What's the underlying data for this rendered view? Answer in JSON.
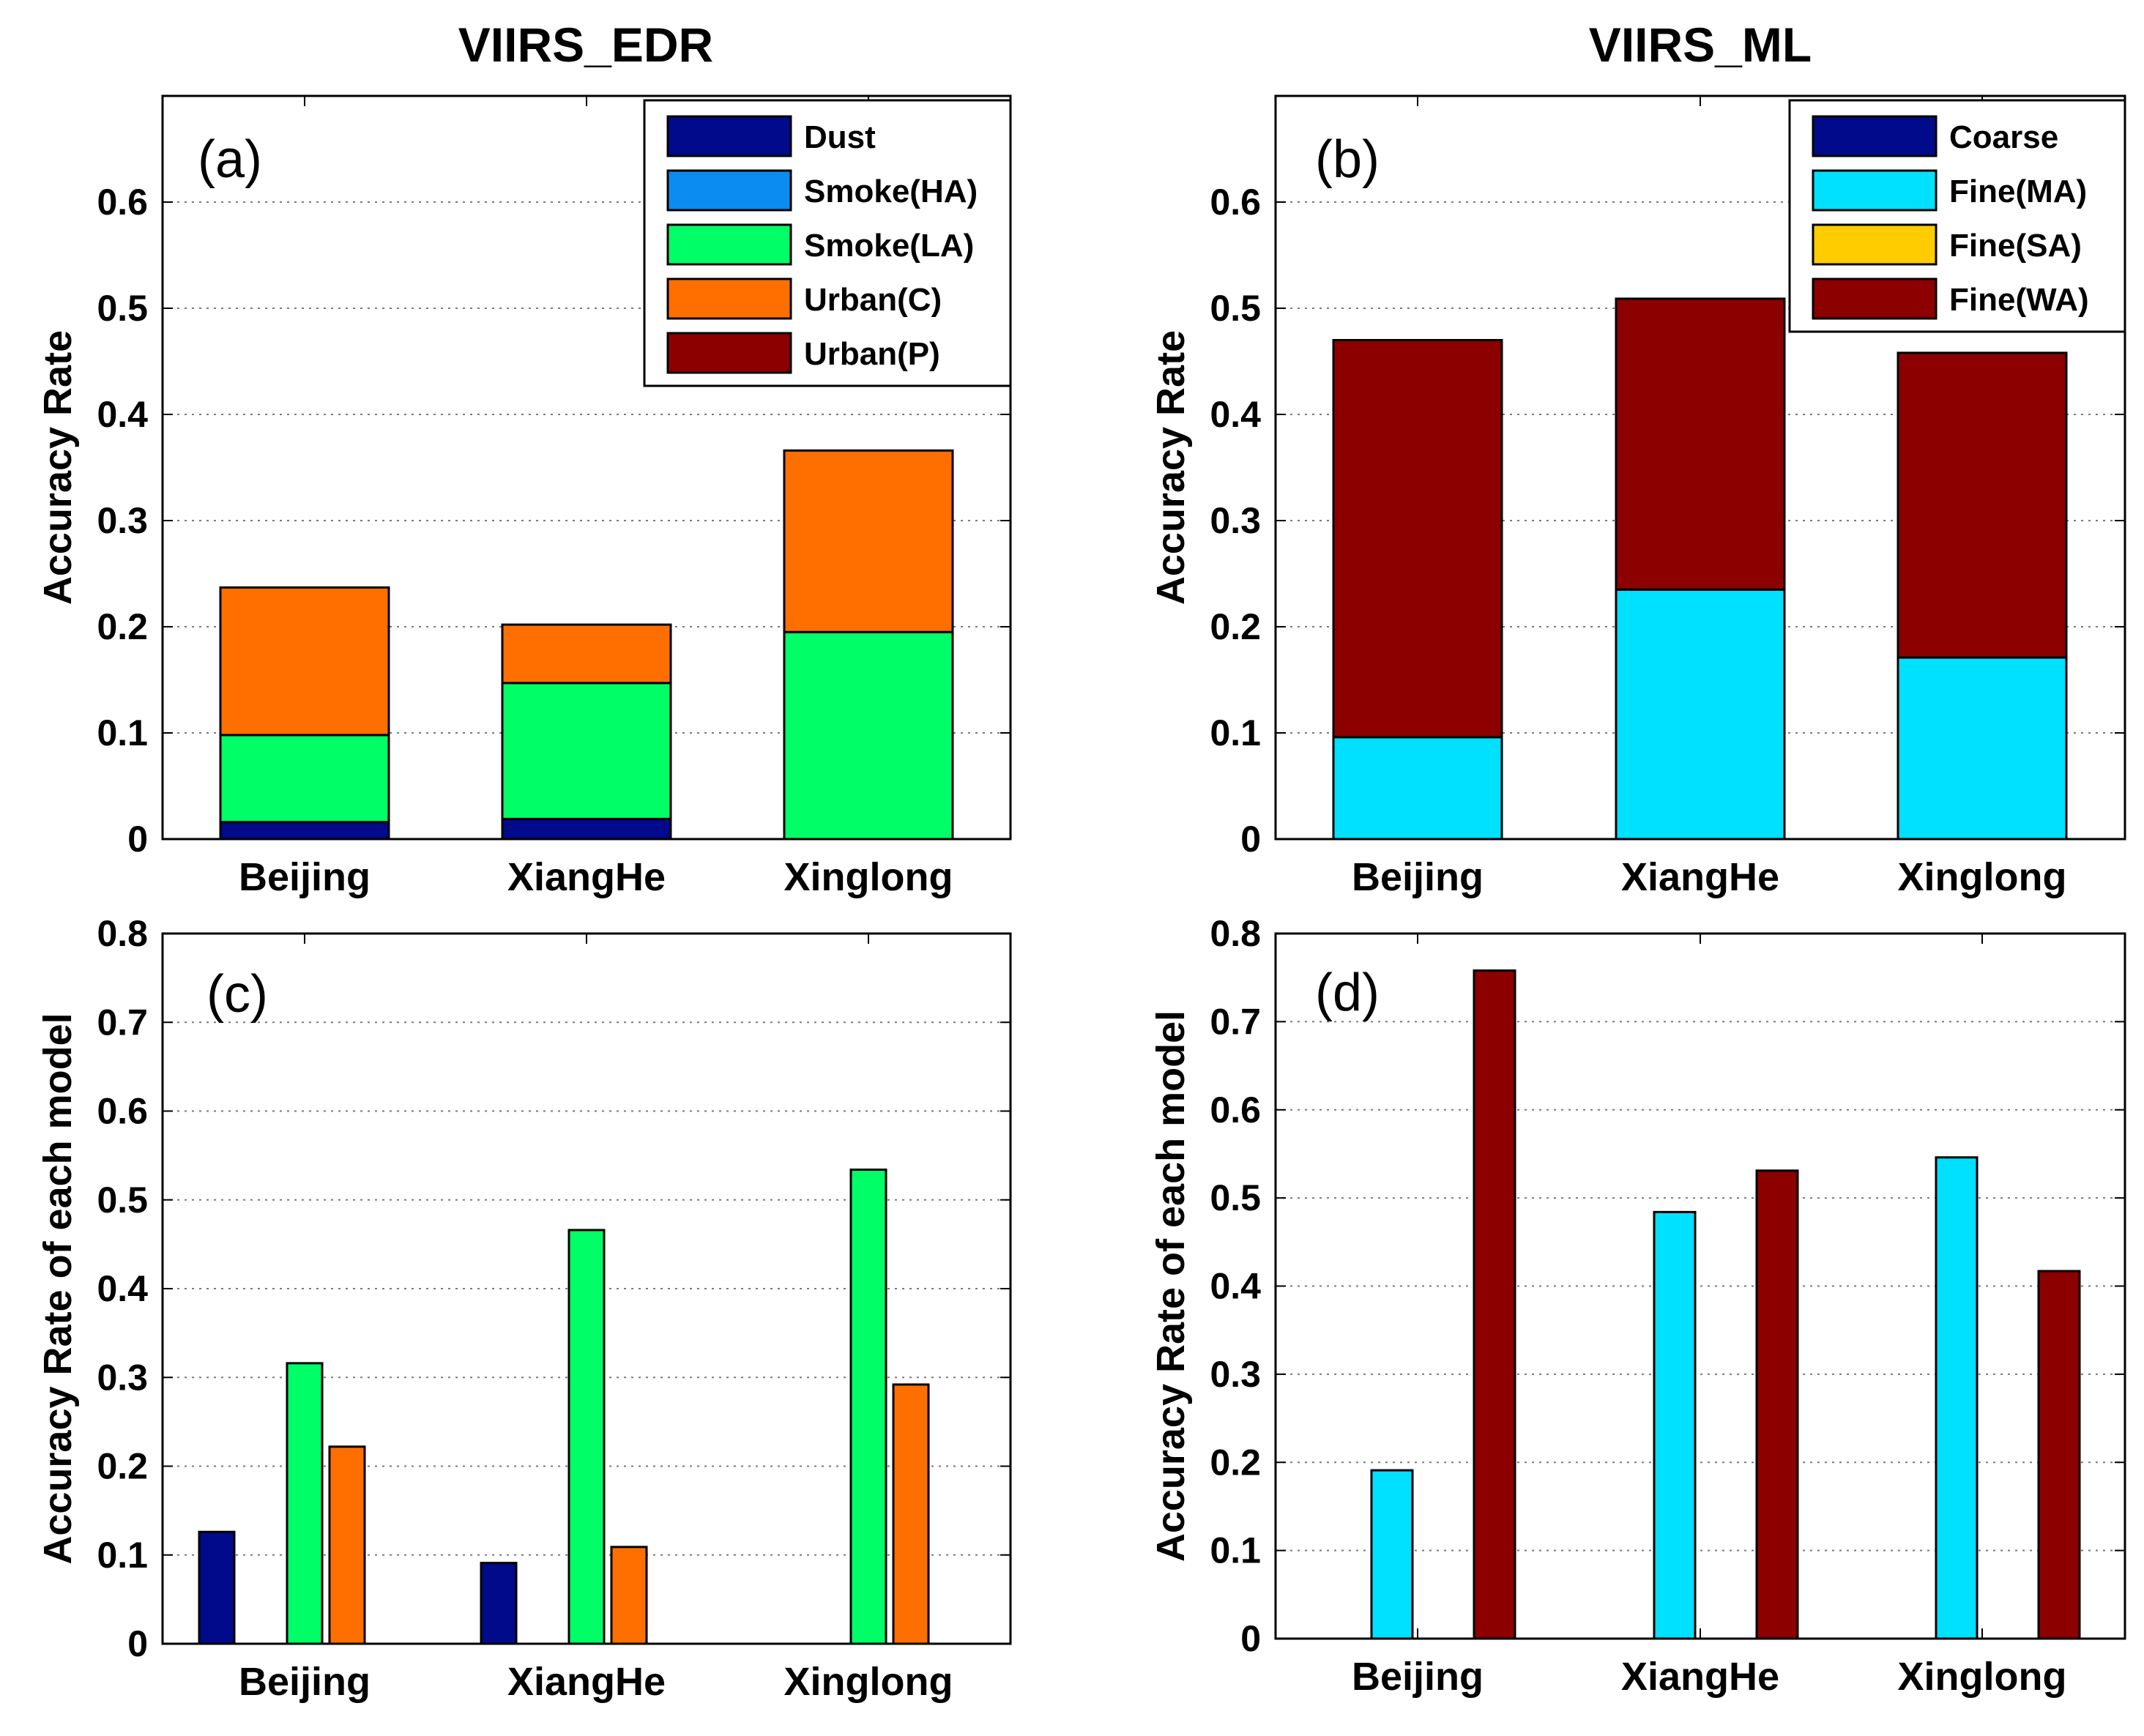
{
  "columns": {
    "left": "VIIRS_EDR",
    "right": "VIIRS_ML"
  },
  "chart_data": [
    {
      "id": "a",
      "type": "bar",
      "stacked": true,
      "panel_label": "(a)",
      "title": "VIIRS_EDR",
      "xlabel": "",
      "ylabel": "Accuracy Rate",
      "ylim": [
        0,
        0.7
      ],
      "yticks": [
        0,
        0.1,
        0.2,
        0.3,
        0.4,
        0.5,
        0.6
      ],
      "ytick_labels": [
        "0",
        "0.1",
        "0.2",
        "0.3",
        "0.4",
        "0.5",
        "0.6"
      ],
      "grid": "y-dotted",
      "legend_position": "top-right",
      "categories": [
        "Beijing",
        "XiangHe",
        "Xinglong"
      ],
      "series": [
        {
          "name": "Dust",
          "color": "#000a8a",
          "values": [
            0.016,
            0.019,
            0.0
          ]
        },
        {
          "name": "Smoke(HA)",
          "color": "#0a8cf0",
          "values": [
            0.0,
            0.0,
            0.0
          ]
        },
        {
          "name": "Smoke(LA)",
          "color": "#00ff66",
          "values": [
            0.082,
            0.128,
            0.195
          ]
        },
        {
          "name": "Urban(C)",
          "color": "#ff6f00",
          "values": [
            0.139,
            0.055,
            0.171
          ]
        },
        {
          "name": "Urban(P)",
          "color": "#8c0000",
          "values": [
            0.0,
            0.0,
            0.0
          ]
        }
      ]
    },
    {
      "id": "b",
      "type": "bar",
      "stacked": true,
      "panel_label": "(b)",
      "title": "VIIRS_ML",
      "xlabel": "",
      "ylabel": "Accuracy Rate",
      "ylim": [
        0,
        0.7
      ],
      "yticks": [
        0,
        0.1,
        0.2,
        0.3,
        0.4,
        0.5,
        0.6
      ],
      "ytick_labels": [
        "0",
        "0.1",
        "0.2",
        "0.3",
        "0.4",
        "0.5",
        "0.6"
      ],
      "grid": "y-dotted",
      "legend_position": "top-right",
      "categories": [
        "Beijing",
        "XiangHe",
        "Xinglong"
      ],
      "series": [
        {
          "name": "Coarse",
          "color": "#000a8a",
          "values": [
            0.0,
            0.0,
            0.0
          ]
        },
        {
          "name": "Fine(MA)",
          "color": "#00e0ff",
          "values": [
            0.096,
            0.235,
            0.171
          ]
        },
        {
          "name": "Fine(SA)",
          "color": "#ffcc00",
          "values": [
            0.0,
            0.0,
            0.0
          ]
        },
        {
          "name": "Fine(WA)",
          "color": "#8c0000",
          "values": [
            0.374,
            0.274,
            0.287
          ]
        }
      ]
    },
    {
      "id": "c",
      "type": "bar",
      "stacked": false,
      "panel_label": "(c)",
      "xlabel": "",
      "ylabel": "Accuracy Rate of each model",
      "ylim": [
        0,
        0.8
      ],
      "yticks": [
        0,
        0.1,
        0.2,
        0.3,
        0.4,
        0.5,
        0.6,
        0.7,
        0.8
      ],
      "ytick_labels": [
        "0",
        "0.1",
        "0.2",
        "0.3",
        "0.4",
        "0.5",
        "0.6",
        "0.7",
        "0.8"
      ],
      "grid": "y-dotted",
      "categories": [
        "Beijing",
        "XiangHe",
        "Xinglong"
      ],
      "series": [
        {
          "name": "Dust",
          "color": "#000a8a",
          "values": [
            0.126,
            0.091,
            0.0
          ]
        },
        {
          "name": "Smoke(HA)",
          "color": "#0a8cf0",
          "values": [
            0.0,
            0.0,
            0.0
          ]
        },
        {
          "name": "Smoke(LA)",
          "color": "#00ff66",
          "values": [
            0.316,
            0.466,
            0.534
          ]
        },
        {
          "name": "Urban(C)",
          "color": "#ff6f00",
          "values": [
            0.222,
            0.109,
            0.292
          ]
        },
        {
          "name": "Urban(P)",
          "color": "#8c0000",
          "values": [
            0.0,
            0.0,
            0.0
          ]
        }
      ]
    },
    {
      "id": "d",
      "type": "bar",
      "stacked": false,
      "panel_label": "(d)",
      "xlabel": "",
      "ylabel": "Accuracy Rate of each model",
      "ylim": [
        0,
        0.8
      ],
      "yticks": [
        0,
        0.1,
        0.2,
        0.3,
        0.4,
        0.5,
        0.6,
        0.7,
        0.8
      ],
      "ytick_labels": [
        "0",
        "0.1",
        "0.2",
        "0.3",
        "0.4",
        "0.5",
        "0.6",
        "0.7",
        "0.8"
      ],
      "grid": "y-dotted",
      "categories": [
        "Beijing",
        "XiangHe",
        "Xinglong"
      ],
      "series": [
        {
          "name": "Coarse",
          "color": "#000a8a",
          "values": [
            0.0,
            0.0,
            0.0
          ]
        },
        {
          "name": "Fine(MA)",
          "color": "#00e0ff",
          "values": [
            0.191,
            0.484,
            0.546
          ]
        },
        {
          "name": "Fine(SA)",
          "color": "#ffcc00",
          "values": [
            0.0,
            0.0,
            0.0
          ]
        },
        {
          "name": "Fine(WA)",
          "color": "#8c0000",
          "values": [
            0.758,
            0.531,
            0.417
          ]
        }
      ]
    }
  ]
}
